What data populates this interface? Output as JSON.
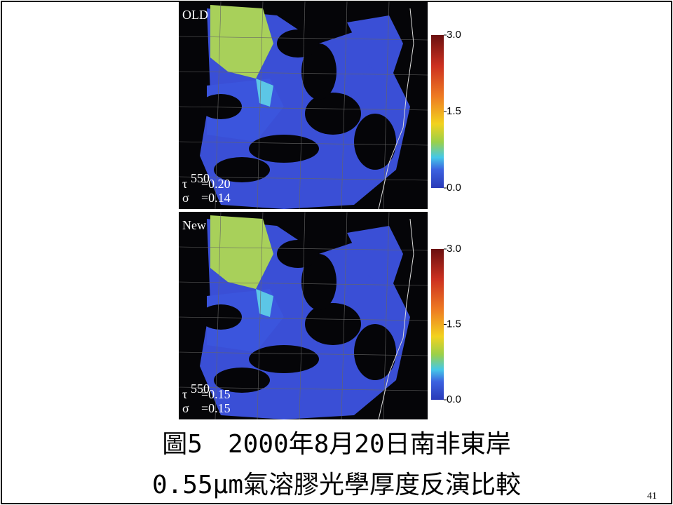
{
  "panels": [
    {
      "label": "OLD",
      "tau_symbol": "τ",
      "tau_sup": "550",
      "tau_value": "=0.20",
      "sigma_symbol": "σ",
      "sigma_value": "=0.14",
      "colorbar": {
        "lim": [
          0,
          3
        ],
        "ticks": [
          {
            "value": 3,
            "label": "3.0"
          },
          {
            "value": 1.5,
            "label": "1.5"
          },
          {
            "value": 0,
            "label": "0.0"
          }
        ]
      }
    },
    {
      "label": "New",
      "tau_symbol": "τ",
      "tau_sup": "550",
      "tau_value": "=0.15",
      "sigma_symbol": "σ",
      "sigma_value": "=0.15",
      "colorbar": {
        "lim": [
          0,
          3
        ],
        "ticks": [
          {
            "value": 3,
            "label": "3.0"
          },
          {
            "value": 1.5,
            "label": "1.5"
          },
          {
            "value": 0,
            "label": "0.0"
          }
        ]
      }
    }
  ],
  "caption": {
    "line1": "圖5　2000年8月20日南非東岸",
    "line2": "0.55μm氣溶膠光學厚度反演比較"
  },
  "page_number": "41"
}
